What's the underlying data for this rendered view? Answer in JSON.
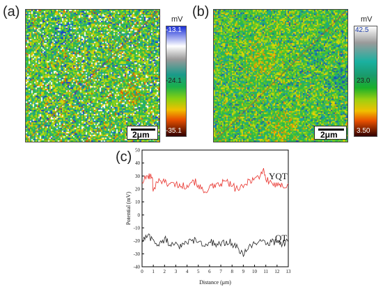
{
  "panels": {
    "a": {
      "label": "(a)",
      "scalebar": "2μm",
      "colorbar": {
        "unit": "mV",
        "ticks": [
          "-13.1",
          "-24.1",
          "-35.1"
        ]
      }
    },
    "b": {
      "label": "(b)",
      "scalebar": "2μm",
      "colorbar": {
        "unit": "mV",
        "ticks": [
          "42.5",
          "23.0",
          "3.50"
        ]
      }
    },
    "c": {
      "label": "(c)"
    }
  },
  "chart_data": {
    "type": "line",
    "xlabel": "Distance (μm)",
    "ylabel": "Potential (mV)",
    "xlim": [
      0,
      13
    ],
    "ylim": [
      -40,
      50
    ],
    "xticks": [
      "0",
      "1",
      "2",
      "3",
      "4",
      "5",
      "6",
      "7",
      "8",
      "9",
      "10",
      "11",
      "12",
      "13"
    ],
    "yticks": [
      "50",
      "40",
      "30",
      "20",
      "10",
      "0",
      "-10",
      "-20",
      "-30",
      "-40"
    ],
    "grid": false,
    "series": [
      {
        "name": "YQT",
        "color": "#e8302a",
        "x": [
          0,
          0.5,
          0.9,
          1.0,
          1.5,
          2.0,
          2.5,
          3.0,
          3.5,
          4.0,
          4.5,
          5.0,
          5.5,
          6.0,
          6.5,
          7.0,
          7.5,
          8.0,
          8.5,
          9.0,
          9.5,
          10.0,
          10.5,
          10.8,
          11.0,
          11.5,
          12.0,
          12.5,
          13.0
        ],
        "y": [
          25,
          30,
          29,
          19,
          28,
          25,
          24,
          24,
          22,
          23,
          27,
          23,
          17,
          22,
          21,
          24,
          26,
          22,
          20,
          21,
          27,
          28,
          30,
          36,
          27,
          25,
          22,
          22,
          24
        ]
      },
      {
        "name": "QT",
        "color": "#222222",
        "x": [
          0,
          0.5,
          1.0,
          1.5,
          2.0,
          2.5,
          3.0,
          3.5,
          4.0,
          4.5,
          5.0,
          5.5,
          6.0,
          6.5,
          7.0,
          7.5,
          8.0,
          8.5,
          9.0,
          9.5,
          10.0,
          10.5,
          11.0,
          11.5,
          12.0,
          12.5,
          13.0
        ],
        "y": [
          -20,
          -16,
          -19,
          -24,
          -18,
          -23,
          -21,
          -25,
          -22,
          -19,
          -21,
          -24,
          -21,
          -22,
          -24,
          -20,
          -22,
          -25,
          -32,
          -24,
          -22,
          -19,
          -23,
          -21,
          -20,
          -22,
          -21
        ]
      }
    ]
  }
}
